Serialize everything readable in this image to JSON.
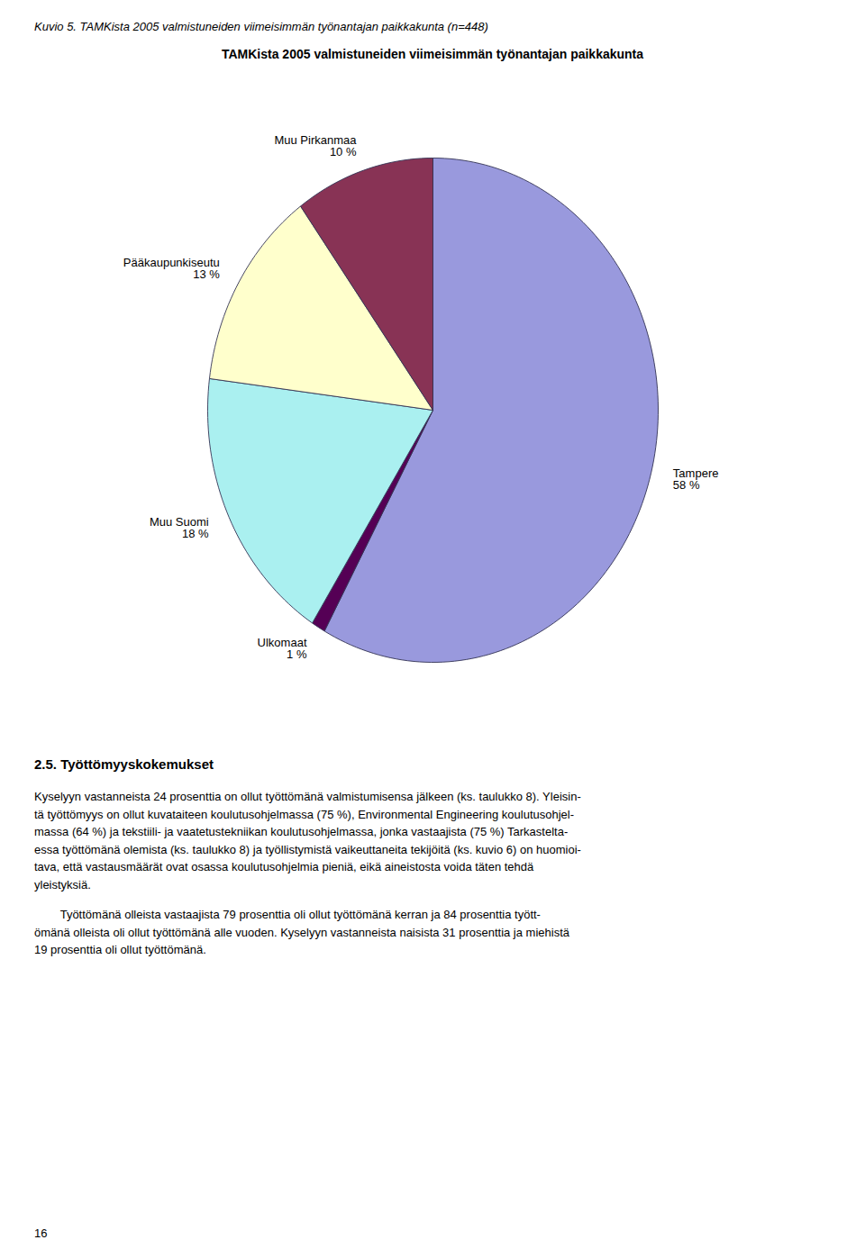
{
  "chart_data": {
    "type": "pie",
    "subtitle": "Kuvio 5. TAMKista 2005 valmistuneiden viimeisimmän työnantajan paikkakunta (n=448)",
    "title": "TAMKista 2005 valmistuneiden viimeisimmän työnantajan paikkakunta",
    "categories": [
      "Tampere",
      "Ulkomaat",
      "Muu Suomi",
      "Pääkaupunkiseutu",
      "Muu Pirkanmaa"
    ],
    "values": [
      58,
      1,
      18,
      13,
      10
    ],
    "value_labels": [
      "58 %",
      "1 %",
      "18 %",
      "13 %",
      "10 %"
    ],
    "colors": [
      "#9999dd",
      "#550055",
      "#aaf0f0",
      "#ffffcc",
      "#883355"
    ],
    "data_labels": true,
    "annotations": [
      "2.5. Työttömyyskokemukset",
      "Kyselyyn vastanneista 24 prosenttia on ollut työttömänä valmistumisensa jälkeen (ks. taulukko 8). Yleisin-\ntä työttömyys on ollut kuvataiteen koulutusohjelmassa (75 %), Environmental Engineering koulutusohjel-\nmassa (64 %) ja tekstiili- ja vaatetustekniikan koulutusohjelmassa, jonka vastaajista (75 %) Tarkastelta-\nessa työttömänä olemista (ks. taulukko 8) ja työllistymistä vaikeuttaneita tekijöitä (ks. kuvio 6) on huomioi-\ntava, että vastausmäärät ovat osassa koulutusohjelmia pieniä, eikä aineistosta voida täten tehdä\nyleistyksiä.",
      "        Työttömänä olleista vastaajista 79 prosenttia oli ollut työttömänä kerran ja 84 prosenttia tyött-\nömänä olleista oli ollut työttömänä alle vuoden. Kyselyyn vastanneista naisista 31 prosenttia ja miehistä\n19 prosenttia oli ollut työttömänä.",
      "16"
    ]
  }
}
